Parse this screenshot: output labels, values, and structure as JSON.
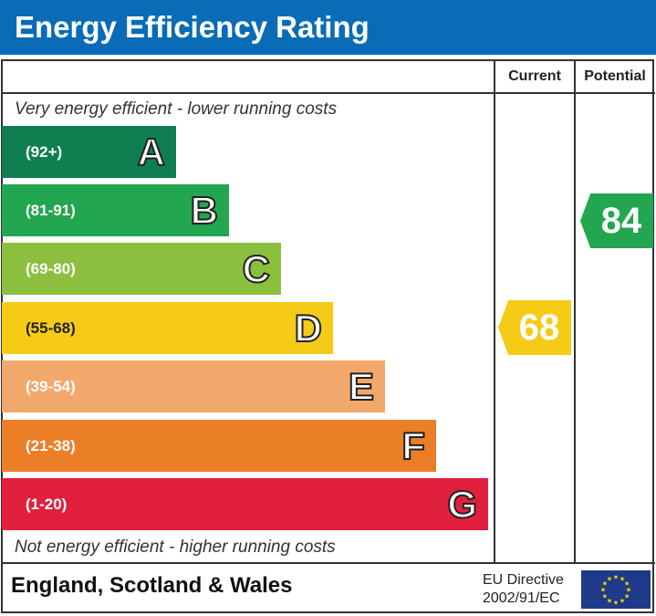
{
  "title": "Energy Efficiency Rating",
  "chart_data": {
    "type": "bar",
    "title": "Energy Efficiency Rating",
    "columns": [
      "Current",
      "Potential"
    ],
    "top_note": "Very energy efficient - lower running costs",
    "bottom_note": "Not energy efficient - higher running costs",
    "bands": [
      {
        "letter": "A",
        "range": "(92+)",
        "color": "#0f7f52"
      },
      {
        "letter": "B",
        "range": "(81-91)",
        "color": "#22a650"
      },
      {
        "letter": "C",
        "range": "(69-80)",
        "color": "#8dbf3f"
      },
      {
        "letter": "D",
        "range": "(55-68)",
        "color": "#f5cb18"
      },
      {
        "letter": "E",
        "range": "(39-54)",
        "color": "#f2a86b"
      },
      {
        "letter": "F",
        "range": "(21-38)",
        "color": "#eb7f28"
      },
      {
        "letter": "G",
        "range": "(1-20)",
        "color": "#e0203d"
      }
    ],
    "current": {
      "value": 68,
      "band": "D",
      "color": "#f5cb18"
    },
    "potential": {
      "value": 84,
      "band": "B",
      "color": "#22a650"
    }
  },
  "footer": {
    "region": "England, Scotland & Wales",
    "directive_line1": "EU Directive",
    "directive_line2": "2002/91/EC",
    "flag_icon": "eu-flag-icon"
  }
}
